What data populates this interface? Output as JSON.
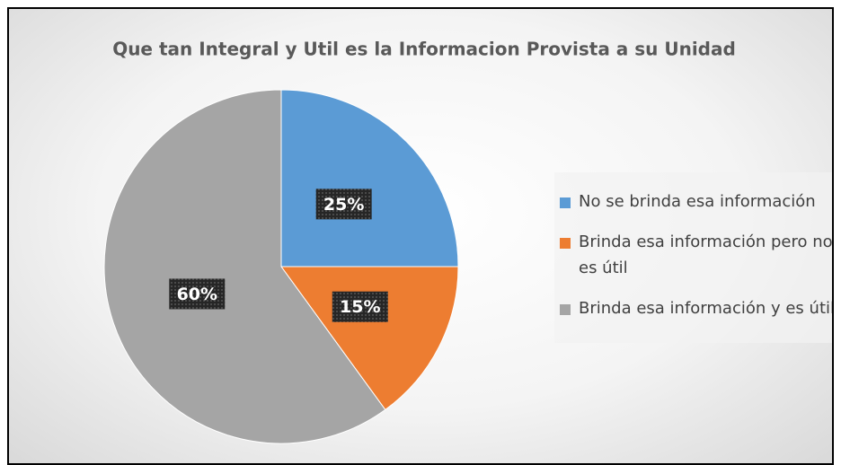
{
  "chart_data": {
    "type": "pie",
    "title": "Que tan Integral y Util es la Informacion Provista a su Unidad",
    "categories": [
      "No se brinda esa información",
      "Brinda esa información pero no es útil",
      "Brinda esa información y es útil"
    ],
    "values": [
      25,
      15,
      60
    ],
    "value_labels": [
      "25%",
      "15%",
      "60%"
    ],
    "colors": [
      "#5b9bd5",
      "#ed7d31",
      "#a5a5a5"
    ],
    "legend": "right"
  }
}
